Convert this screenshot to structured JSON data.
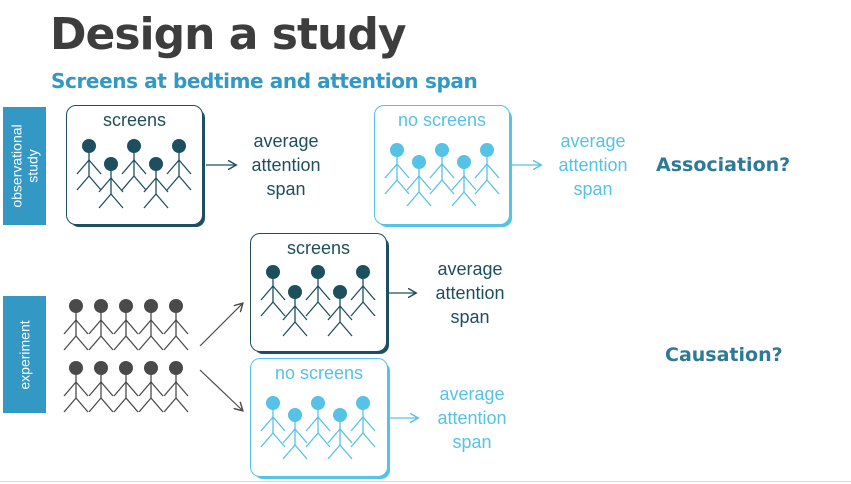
{
  "slide": {
    "title": "Design a study",
    "subtitle": "Screens at bedtime and attention span"
  },
  "sides": {
    "observational": "observational study",
    "observational_line1": "observational",
    "observational_line2": "study",
    "experiment": "experiment"
  },
  "groups": {
    "screens": "screens",
    "no_screens": "no screens"
  },
  "outcome": {
    "line1": "average",
    "line2": "attention",
    "line3": "span"
  },
  "questions": {
    "association": "Association?",
    "causation": "Causation?"
  },
  "colors": {
    "dark": "#1e4f5e",
    "light": "#55c2e6",
    "gray": "#4a4a4a",
    "accent": "#3399c4"
  }
}
